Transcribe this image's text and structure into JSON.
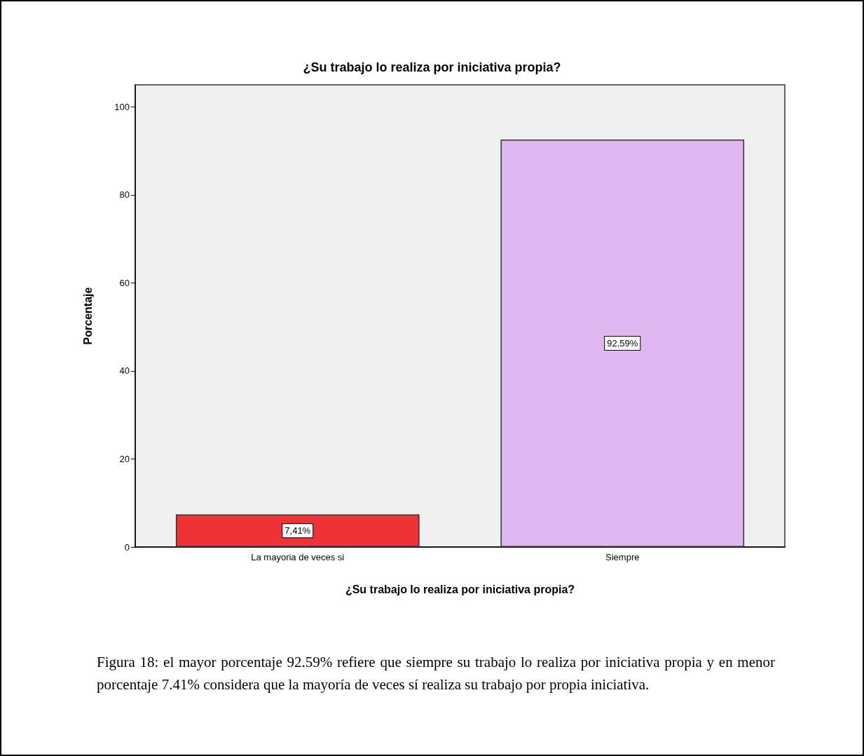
{
  "chart_data": {
    "type": "bar",
    "title": "¿Su trabajo lo realiza por iniciativa propia?",
    "xlabel": "¿Su trabajo lo realiza por iniciativa propia?",
    "ylabel": "Porcentaje",
    "categories": [
      "La mayoria de veces si",
      "Siempre"
    ],
    "values": [
      7.41,
      92.59
    ],
    "colors": [
      "#ee3338",
      "#dfb7f1"
    ],
    "value_labels": [
      "7,41%",
      "92,59%"
    ],
    "ylim": [
      0,
      105
    ],
    "yticks": [
      0,
      20,
      40,
      60,
      80,
      100
    ],
    "grid": false,
    "annotations": [
      "Figura 18: el mayor porcentaje 92.59% refiere que siempre su trabajo lo realiza por iniciativa propia y en menor porcentaje 7.41% considera que la mayoría de veces sí realiza su trabajo por propia iniciativa."
    ]
  }
}
